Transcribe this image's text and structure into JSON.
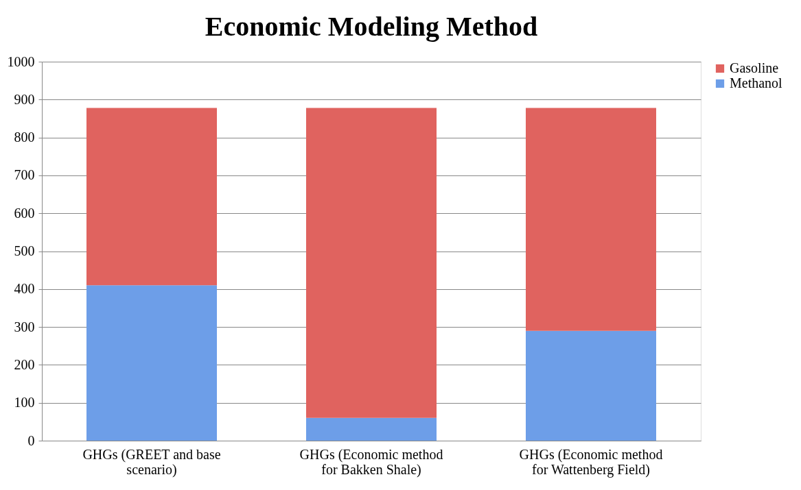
{
  "chart_data": {
    "type": "bar",
    "title": "Economic Modeling Method",
    "stacked": true,
    "categories": [
      "GHGs (GREET and base scenario)",
      "GHGs (Economic method for Bakken Shale)",
      "GHGs (Economic method for Wattenberg Field)"
    ],
    "series": [
      {
        "name": "Methanol",
        "color": "#6d9ee8",
        "values": [
          410,
          60,
          290
        ]
      },
      {
        "name": "Gasoline",
        "color": "#e0635f",
        "values": [
          468,
          818,
          588
        ]
      }
    ],
    "ylim": [
      0,
      1000
    ],
    "yticks": [
      0,
      100,
      200,
      300,
      400,
      500,
      600,
      700,
      800,
      900,
      1000
    ],
    "grid": "y",
    "legend": "right"
  }
}
